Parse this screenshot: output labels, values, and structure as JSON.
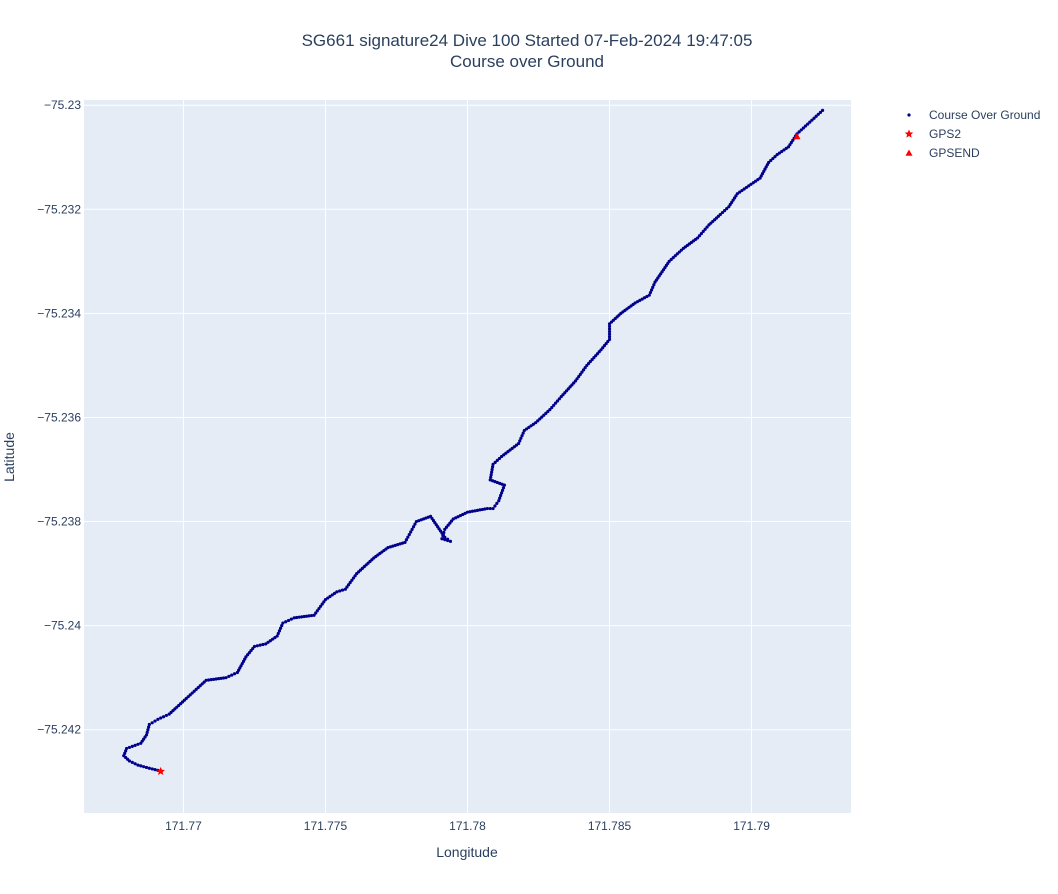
{
  "chart_data": {
    "type": "scatter",
    "title_line1": "SG661 signature24 Dive 100 Started 07-Feb-2024 19:47:05",
    "title_line2": "Course over Ground",
    "xlabel": "Longitude",
    "ylabel": "Latitude",
    "xlim": [
      171.7665,
      171.7935
    ],
    "ylim": [
      -75.2436,
      -75.2299
    ],
    "xticks": [
      171.77,
      171.775,
      171.78,
      171.785,
      171.79
    ],
    "xtick_labels": [
      "171.77",
      "171.775",
      "171.78",
      "171.785",
      "171.79"
    ],
    "yticks": [
      -75.23,
      -75.232,
      -75.234,
      -75.236,
      -75.238,
      -75.24,
      -75.242
    ],
    "ytick_labels": [
      "−75.23",
      "−75.232",
      "−75.234",
      "−75.236",
      "−75.238",
      "−75.24",
      "−75.242"
    ],
    "grid": true,
    "legend_position": "top-right",
    "colors": {
      "plot_bg": "#e5ecf6",
      "grid": "#ffffff",
      "track": "#00008b",
      "gps": "#ff0000",
      "text": "#2a3f5f"
    },
    "series": [
      {
        "name": "Course Over Ground",
        "marker": "dot",
        "color": "#00008b",
        "x": [
          171.7691,
          171.7688,
          171.7684,
          171.7681,
          171.7679,
          171.768,
          171.7683,
          171.7685,
          171.7687,
          171.7688,
          171.7691,
          171.7695,
          171.7701,
          171.7708,
          171.7715,
          171.7719,
          171.7722,
          171.7725,
          171.7729,
          171.7733,
          171.7735,
          171.7739,
          171.7746,
          171.775,
          171.7754,
          171.7757,
          171.7761,
          171.7765,
          171.7767,
          171.7772,
          171.7778,
          171.778,
          171.7782,
          171.7787,
          171.7792,
          171.7794,
          171.7791,
          171.7792,
          171.7795,
          171.78,
          171.7807,
          171.7809,
          171.7811,
          171.7813,
          171.7808,
          171.7809,
          171.7812,
          171.7818,
          171.782,
          171.7824,
          171.7829,
          171.7833,
          171.7838,
          171.7842,
          171.7847,
          171.785,
          171.785,
          171.7854,
          171.7859,
          171.7864,
          171.7866,
          171.7871,
          171.7876,
          171.7881,
          171.7885,
          171.7889,
          171.7892,
          171.7895,
          171.7899,
          171.7903,
          171.7906,
          171.7909,
          171.7913,
          171.7916,
          171.7919,
          171.7922,
          171.7925
        ],
        "y": [
          -75.24278,
          -75.24274,
          -75.24268,
          -75.2426,
          -75.2425,
          -75.24236,
          -75.2423,
          -75.24226,
          -75.2421,
          -75.2419,
          -75.2418,
          -75.2417,
          -75.2414,
          -75.24105,
          -75.241,
          -75.2409,
          -75.2406,
          -75.2404,
          -75.24035,
          -75.2402,
          -75.23995,
          -75.23985,
          -75.2398,
          -75.2395,
          -75.23935,
          -75.2393,
          -75.239,
          -75.2388,
          -75.2387,
          -75.2385,
          -75.2384,
          -75.2382,
          -75.238,
          -75.2379,
          -75.2383,
          -75.23838,
          -75.23833,
          -75.23815,
          -75.23795,
          -75.23782,
          -75.23775,
          -75.23775,
          -75.2376,
          -75.2373,
          -75.2372,
          -75.2369,
          -75.23675,
          -75.2365,
          -75.23625,
          -75.2361,
          -75.23585,
          -75.2356,
          -75.2353,
          -75.235,
          -75.2347,
          -75.2345,
          -75.2342,
          -75.234,
          -75.2338,
          -75.23365,
          -75.2334,
          -75.233,
          -75.23275,
          -75.23255,
          -75.2323,
          -75.2321,
          -75.23195,
          -75.2317,
          -75.23155,
          -75.2314,
          -75.2311,
          -75.23095,
          -75.2308,
          -75.23055,
          -75.2304,
          -75.23025,
          -75.2301
        ]
      },
      {
        "name": "GPS2",
        "marker": "star",
        "color": "#ff0000",
        "x": [
          171.7692
        ],
        "y": [
          -75.2428
        ]
      },
      {
        "name": "GPSEND",
        "marker": "triangle-up",
        "color": "#ff0000",
        "x": [
          171.7916
        ],
        "y": [
          -75.2306
        ]
      }
    ]
  }
}
